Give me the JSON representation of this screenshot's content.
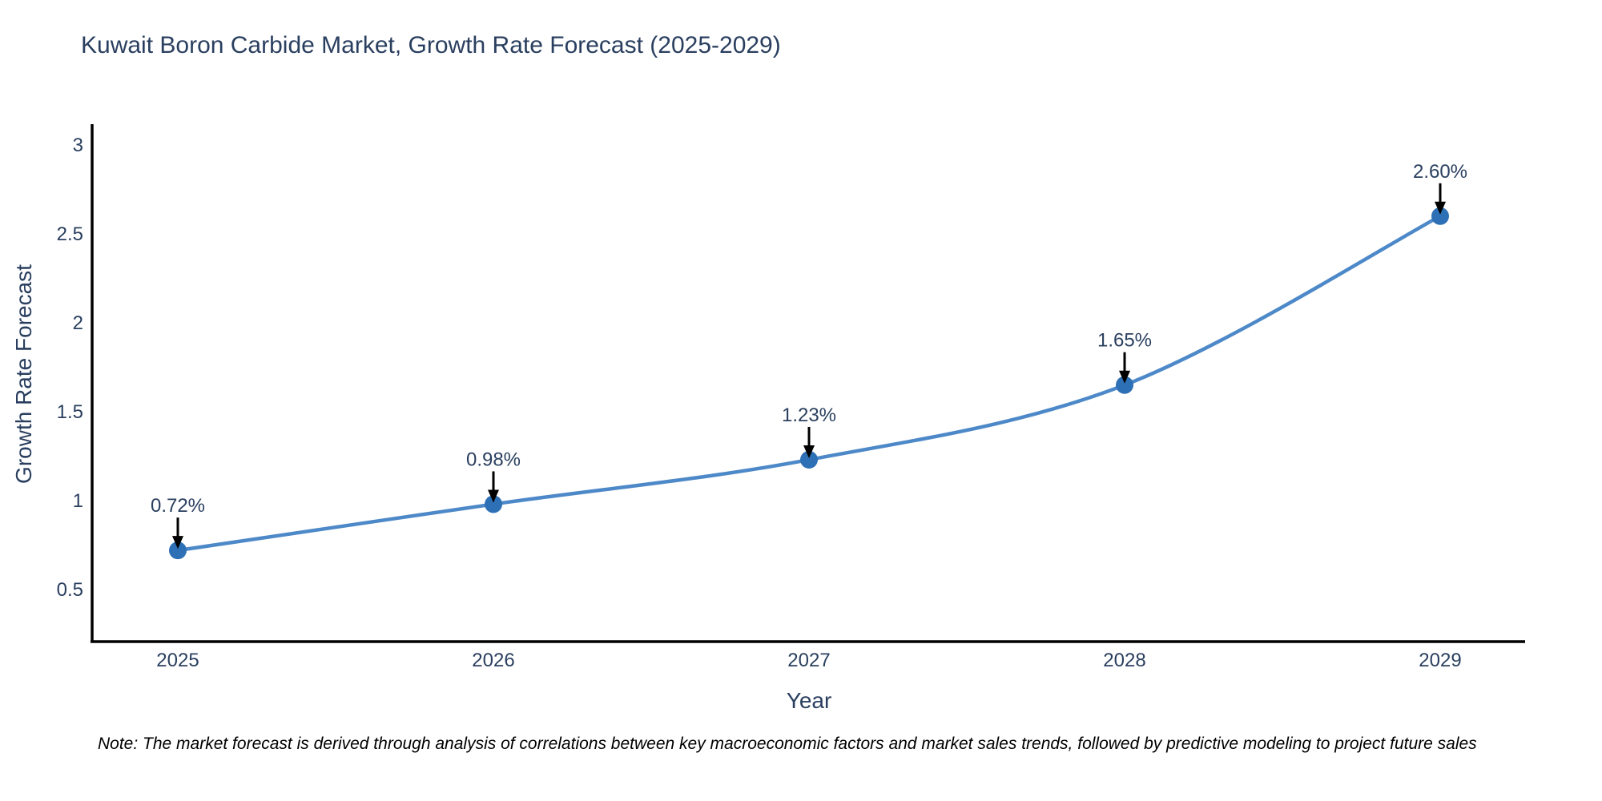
{
  "chart_data": {
    "type": "line",
    "title": "Kuwait Boron Carbide Market, Growth Rate Forecast (2025-2029)",
    "xlabel": "Year",
    "ylabel": "Growth Rate Forecast",
    "categories": [
      "2025",
      "2026",
      "2027",
      "2028",
      "2029"
    ],
    "series": [
      {
        "name": "Growth Rate Forecast",
        "values": [
          0.72,
          0.98,
          1.23,
          1.65,
          2.6
        ]
      }
    ],
    "point_labels": [
      "0.72%",
      "0.98%",
      "1.23%",
      "1.65%",
      "2.60%"
    ],
    "yticks": [
      0.5,
      1,
      1.5,
      2,
      2.5,
      3
    ],
    "ylim": [
      0.21,
      3.11
    ],
    "grid": false,
    "legend_position": "none",
    "line_shape": "spline",
    "colors": {
      "line": "#4d89c8",
      "marker": "#2e70b5",
      "axis": "#000000",
      "text": "#2a3f5f",
      "annotation_arrow": "#000000",
      "note_text": "#000000",
      "background": "#ffffff"
    },
    "note": "Note: The market forecast is derived through analysis of correlations between key macroeconomic factors and market sales trends, followed by predictive modeling to project future sales"
  }
}
